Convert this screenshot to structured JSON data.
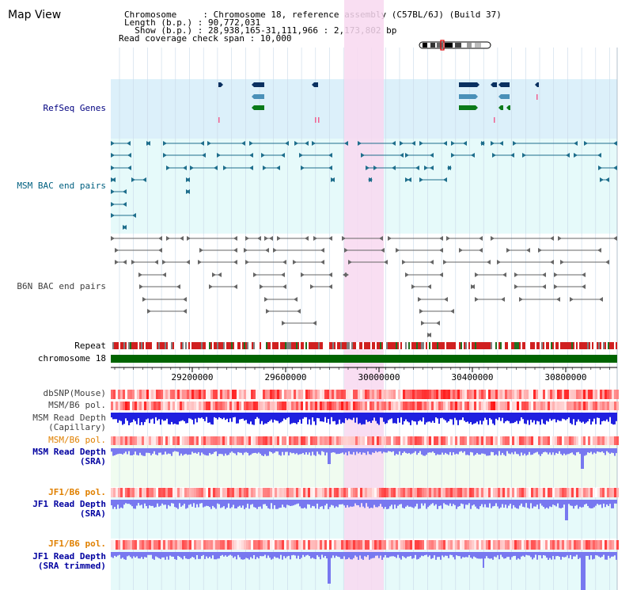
{
  "title": "Map View",
  "info": {
    "line1": "Chromosome     : Chromosome 18, reference assembly (C57BL/6J) (Build 37)",
    "line2": "Length (b.p.) : 90,772,031",
    "line3": "  Show (b.p.) : 28,938,165-31,111,966 : 2,173,802 bp",
    "line4": "Read coverage check span : 10,000"
  },
  "tracks": {
    "refseq": "RefSeq Genes",
    "msm_bac": "MSM BAC end pairs",
    "b6n_bac": "B6N BAC end pairs",
    "repeat": "Repeat",
    "chromosome": "chromosome 18",
    "dbsnp": "dbSNP(Mouse)",
    "msm_b6_pol_1": "MSM/B6 pol.",
    "msm_depth_cap_1": "MSM Read Depth",
    "msm_depth_cap_2": "(Capillary)",
    "msm_b6_pol_2": "MSM/B6 pol.",
    "msm_depth_sra_1": "MSM Read Depth",
    "msm_depth_sra_2": "(SRA)",
    "jf1_b6_pol_1": "JF1/B6 pol.",
    "jf1_depth_sra_1": "JF1 Read Depth",
    "jf1_depth_sra_2": "(SRA)",
    "jf1_b6_pol_2": "JF1/B6 pol.",
    "jf1_depth_trim_1": "JF1 Read Depth",
    "jf1_depth_trim_2": "(SRA trimmed)"
  },
  "axis": {
    "ticks": [
      "29200000",
      "29600000",
      "30000000",
      "30400000",
      "30800000"
    ]
  },
  "colors": {
    "refseq_bg": "#dcf0fa",
    "msm_bg": "#e6fafa",
    "highlight": "#f8d8f0",
    "msm_feature": "#1e6e8c",
    "b6n_feature": "#666666",
    "gene_navy": "#0a3060",
    "gene_steel": "#4a90b8",
    "gene_green": "#0a7a1a",
    "chrom_bar": "#006400",
    "depth_blue": "#2020e0",
    "depth_light": "#7878f0",
    "label_navy": "#000080",
    "label_teal": "#006080",
    "label_orange": "#e08000",
    "label_gray": "#404040"
  }
}
